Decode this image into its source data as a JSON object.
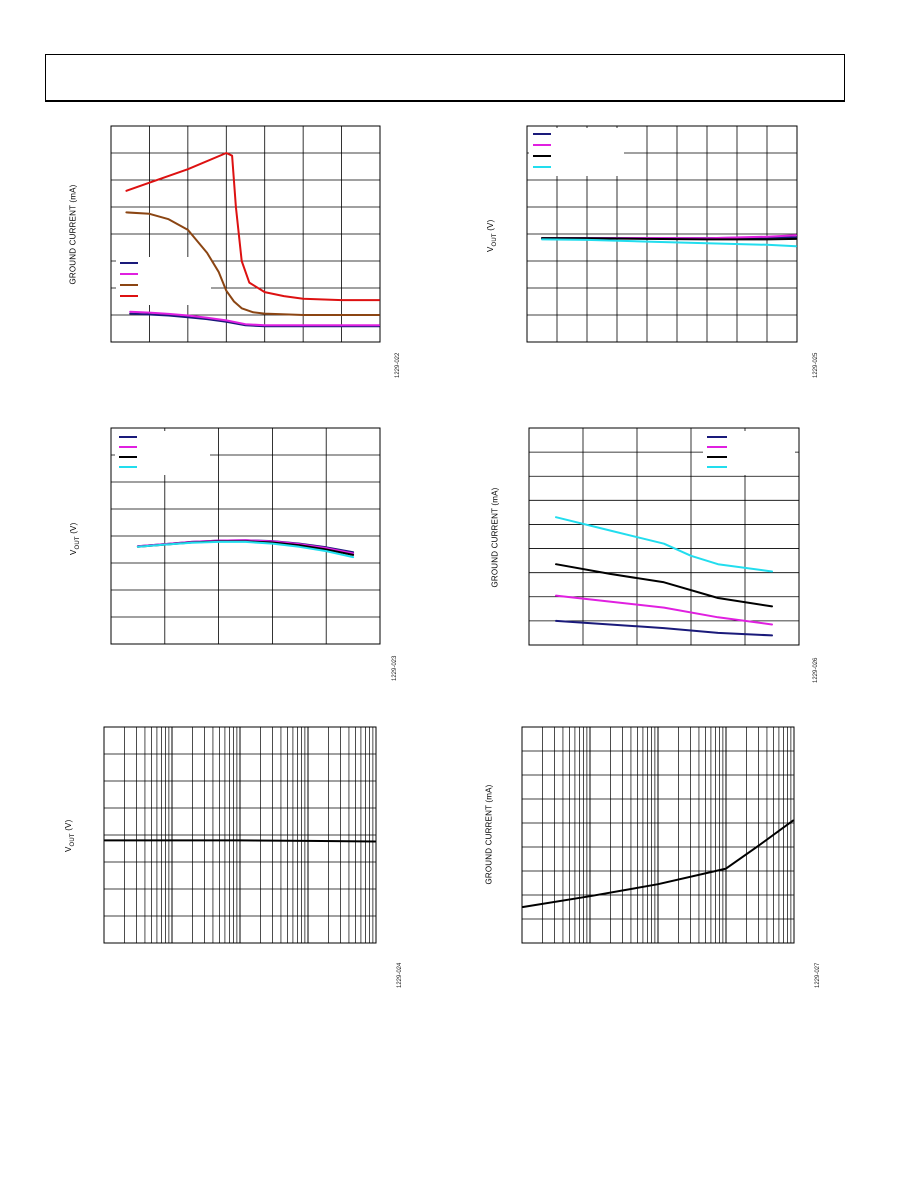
{
  "page": {
    "header_title": ""
  },
  "charts": [
    {
      "id": "c1",
      "ylabel": "GROUND CURRENT (mA)",
      "fig_id": "1229-022"
    },
    {
      "id": "c2",
      "ylabel_main": "V",
      "ylabel_sub": "OUT",
      "ylabel_unit": " (V)",
      "fig_id": "1229-025"
    },
    {
      "id": "c3",
      "ylabel_main": "V",
      "ylabel_sub": "OUT",
      "ylabel_unit": " (V)",
      "fig_id": "1229-023"
    },
    {
      "id": "c4",
      "ylabel": "GROUND CURRENT (mA)",
      "fig_id": "1229-026"
    },
    {
      "id": "c5",
      "ylabel_main": "V",
      "ylabel_sub": "OUT",
      "ylabel_unit": " (V)",
      "fig_id": "1229-024"
    },
    {
      "id": "c6",
      "ylabel": "GROUND CURRENT (mA)",
      "fig_id": "1229-027"
    }
  ],
  "chart_data": [
    {
      "type": "line",
      "xlim": [
        0,
        7
      ],
      "ylim": [
        0,
        8
      ],
      "grid": true,
      "legend": "left-middle",
      "series": [
        {
          "color": "#1a1a7a",
          "x": [
            0.5,
            1,
            1.5,
            2,
            2.5,
            3,
            3.5,
            4,
            5,
            6,
            7
          ],
          "y": [
            1.05,
            1.02,
            0.98,
            0.92,
            0.85,
            0.75,
            0.62,
            0.58,
            0.58,
            0.58,
            0.58
          ]
        },
        {
          "color": "#e020e0",
          "x": [
            0.5,
            1,
            1.5,
            2,
            2.5,
            3,
            3.5,
            4,
            5,
            6,
            7
          ],
          "y": [
            1.12,
            1.09,
            1.04,
            0.98,
            0.9,
            0.8,
            0.66,
            0.62,
            0.62,
            0.62,
            0.62
          ]
        },
        {
          "color": "#8b4513",
          "x": [
            0.4,
            1,
            1.5,
            2,
            2.5,
            2.8,
            3,
            3.2,
            3.4,
            3.7,
            4,
            5,
            6,
            7
          ],
          "y": [
            4.8,
            4.75,
            4.55,
            4.15,
            3.3,
            2.6,
            1.9,
            1.5,
            1.25,
            1.1,
            1.05,
            1.0,
            1.0,
            1.0
          ]
        },
        {
          "color": "#dd1111",
          "x": [
            0.4,
            1,
            2,
            3,
            3.15,
            3.25,
            3.4,
            3.6,
            4,
            4.5,
            5,
            6,
            7
          ],
          "y": [
            5.6,
            5.9,
            6.4,
            7.0,
            6.9,
            5.0,
            3.0,
            2.2,
            1.85,
            1.7,
            1.6,
            1.55,
            1.55
          ]
        }
      ]
    },
    {
      "type": "line",
      "xlim": [
        0,
        9
      ],
      "ylim": [
        0,
        8
      ],
      "grid": true,
      "legend": "top-left",
      "series": [
        {
          "color": "#1a1a7a",
          "x": [
            0.5,
            2,
            4,
            6,
            8,
            9
          ],
          "y": [
            3.85,
            3.85,
            3.85,
            3.85,
            3.87,
            3.88
          ]
        },
        {
          "color": "#e020e0",
          "x": [
            0.5,
            2,
            4,
            6,
            8,
            9
          ],
          "y": [
            3.85,
            3.85,
            3.85,
            3.84,
            3.9,
            3.95
          ]
        },
        {
          "color": "#000000",
          "x": [
            0.5,
            2,
            4,
            6,
            8,
            9
          ],
          "y": [
            3.85,
            3.84,
            3.82,
            3.8,
            3.8,
            3.82
          ]
        },
        {
          "color": "#22ddee",
          "x": [
            0.5,
            2,
            4,
            6,
            8,
            9
          ],
          "y": [
            3.8,
            3.78,
            3.72,
            3.66,
            3.6,
            3.55
          ]
        }
      ]
    },
    {
      "type": "line",
      "xlim": [
        0,
        5
      ],
      "ylim": [
        0,
        8
      ],
      "grid": true,
      "legend": "top-left",
      "series": [
        {
          "color": "#1a1a7a",
          "x": [
            0.5,
            1,
            1.5,
            2,
            2.5,
            3,
            3.5,
            4,
            4.5
          ],
          "y": [
            3.62,
            3.7,
            3.78,
            3.83,
            3.84,
            3.81,
            3.72,
            3.58,
            3.4
          ]
        },
        {
          "color": "#e020e0",
          "x": [
            0.5,
            1,
            1.5,
            2,
            2.5,
            3,
            3.5,
            4,
            4.5
          ],
          "y": [
            3.62,
            3.7,
            3.78,
            3.83,
            3.84,
            3.8,
            3.7,
            3.55,
            3.35
          ]
        },
        {
          "color": "#000000",
          "x": [
            0.5,
            1,
            1.5,
            2,
            2.5,
            3,
            3.5,
            4,
            4.5
          ],
          "y": [
            3.6,
            3.68,
            3.76,
            3.8,
            3.8,
            3.76,
            3.66,
            3.5,
            3.3
          ]
        },
        {
          "color": "#22ddee",
          "x": [
            0.5,
            1,
            1.5,
            2,
            2.5,
            3,
            3.5,
            4,
            4.5
          ],
          "y": [
            3.6,
            3.68,
            3.75,
            3.78,
            3.78,
            3.72,
            3.6,
            3.44,
            3.22
          ]
        }
      ]
    },
    {
      "type": "line",
      "xlim": [
        0,
        5
      ],
      "ylim": [
        0,
        9
      ],
      "grid": true,
      "legend": "top-right",
      "series": [
        {
          "color": "#1a1a7a",
          "x": [
            0.5,
            1.5,
            2.5,
            3.5,
            4.5
          ],
          "y": [
            1.0,
            0.85,
            0.7,
            0.5,
            0.4
          ]
        },
        {
          "color": "#e020e0",
          "x": [
            0.5,
            1.5,
            2.5,
            3.5,
            4.5
          ],
          "y": [
            2.05,
            1.8,
            1.55,
            1.15,
            0.85
          ]
        },
        {
          "color": "#000000",
          "x": [
            0.5,
            1.5,
            2.5,
            3.5,
            4.5
          ],
          "y": [
            3.35,
            2.95,
            2.6,
            1.95,
            1.6
          ]
        },
        {
          "color": "#22ddee",
          "x": [
            0.5,
            1.5,
            2.5,
            3,
            3.5,
            4.5
          ],
          "y": [
            5.3,
            4.75,
            4.2,
            3.7,
            3.35,
            3.05
          ]
        }
      ]
    },
    {
      "type": "line",
      "xscale": "log",
      "xlim": [
        1,
        10000
      ],
      "ylim": [
        0,
        8
      ],
      "grid": true,
      "series": [
        {
          "color": "#000000",
          "x": [
            1,
            10,
            100,
            1000,
            10000
          ],
          "y": [
            3.8,
            3.8,
            3.8,
            3.78,
            3.76
          ]
        }
      ]
    },
    {
      "type": "line",
      "xscale": "log",
      "xlim": [
        1,
        10000
      ],
      "ylim": [
        0,
        9
      ],
      "grid": true,
      "series": [
        {
          "color": "#000000",
          "x": [
            1,
            10,
            100,
            1000,
            3000,
            10000
          ],
          "y": [
            1.5,
            1.95,
            2.45,
            3.1,
            4.05,
            5.1
          ]
        }
      ]
    }
  ]
}
